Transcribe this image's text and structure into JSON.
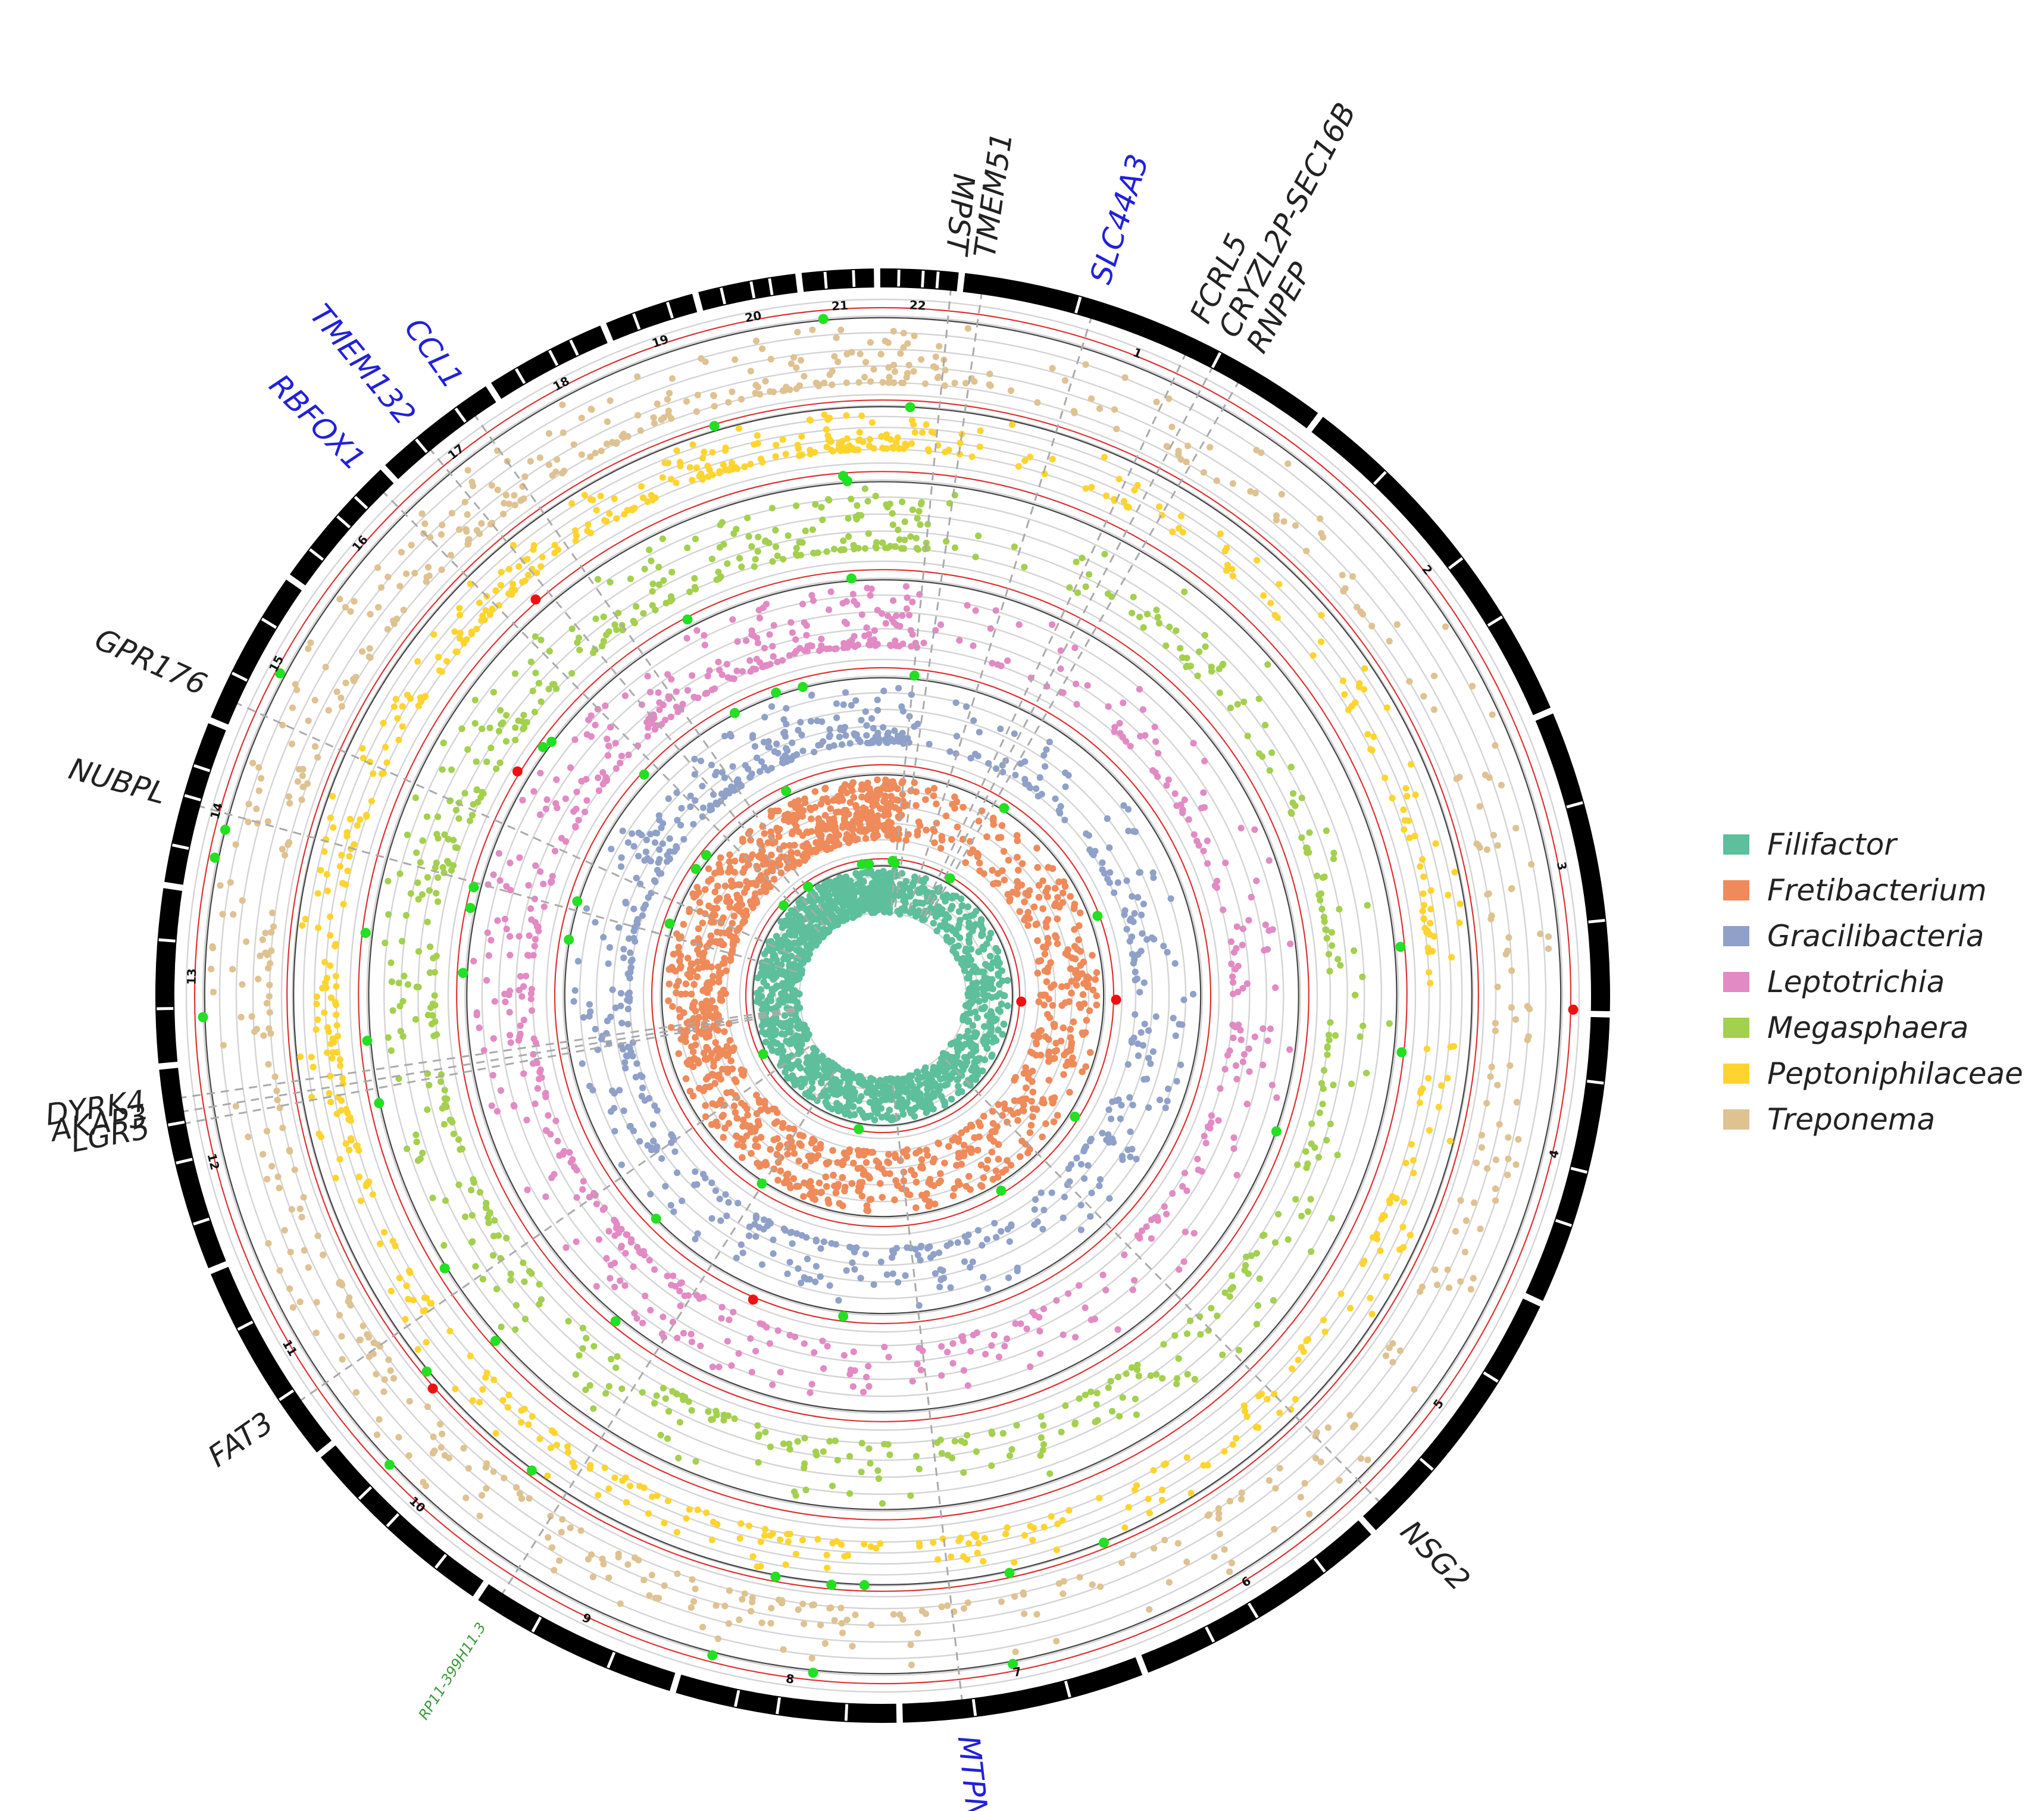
{
  "chart_data": {
    "type": "circular-manhattan",
    "title": "",
    "chromosomes": [
      "1",
      "2",
      "3",
      "4",
      "5",
      "6",
      "7",
      "8",
      "9",
      "10",
      "11",
      "12",
      "13",
      "14",
      "15",
      "16",
      "17",
      "18",
      "19",
      "20",
      "21",
      "22"
    ],
    "chromosome_sizes": [
      249,
      242,
      198,
      190,
      181,
      171,
      159,
      145,
      138,
      134,
      135,
      133,
      114,
      107,
      102,
      90,
      83,
      80,
      59,
      64,
      47,
      51
    ],
    "series": [
      {
        "name": "Filifactor",
        "color": "#5dbf9c"
      },
      {
        "name": "Fretibacterium",
        "color": "#ef8a5a"
      },
      {
        "name": "Gracilibacteria",
        "color": "#8fa1c9"
      },
      {
        "name": "Leptotrichia",
        "color": "#e28ac4"
      },
      {
        "name": "Megasphaera",
        "color": "#a3d04e"
      },
      {
        "name": "Peptoniphilaceae",
        "color": "#ffd42f"
      },
      {
        "name": "Treponema",
        "color": "#dfc291"
      }
    ],
    "highlight_colors": {
      "suggestive": "#22e022",
      "significant": "#ee1111"
    },
    "threshold_line_colors": {
      "significance": "#dd3333",
      "suggestive": "#444444"
    },
    "gene_labels": [
      {
        "gene": "MPST",
        "chr": "22",
        "color": "#222222"
      },
      {
        "gene": "TMEM51",
        "chr": "1",
        "color": "#222222"
      },
      {
        "gene": "SLC44A3",
        "chr": "1",
        "color": "#2121d8"
      },
      {
        "gene": "FCRL5",
        "chr": "1",
        "color": "#222222"
      },
      {
        "gene": "CRYZL2P-SEC16B",
        "chr": "1",
        "color": "#222222"
      },
      {
        "gene": "RNPEP",
        "chr": "1",
        "color": "#222222"
      },
      {
        "gene": "NSG2",
        "chr": "5",
        "color": "#222222"
      },
      {
        "gene": "MTPN",
        "chr": "7",
        "color": "#2121d8"
      },
      {
        "gene": "RP11-399H11.3",
        "chr": "9",
        "color": "#3a9a3a"
      },
      {
        "gene": "FAT3",
        "chr": "11",
        "color": "#222222"
      },
      {
        "gene": "DYRK4",
        "chr": "12",
        "color": "#222222"
      },
      {
        "gene": "AKAP3",
        "chr": "12",
        "color": "#222222"
      },
      {
        "gene": "LGR5",
        "chr": "12",
        "color": "#222222"
      },
      {
        "gene": "NUBPL",
        "chr": "14",
        "color": "#222222"
      },
      {
        "gene": "GPR176",
        "chr": "15",
        "color": "#222222"
      },
      {
        "gene": "RBFOX1",
        "chr": "16",
        "color": "#2121d8"
      },
      {
        "gene": "TMEM132",
        "chr": "17",
        "color": "#2121d8"
      },
      {
        "gene": "CCL1",
        "chr": "17",
        "color": "#2121d8"
      }
    ]
  }
}
